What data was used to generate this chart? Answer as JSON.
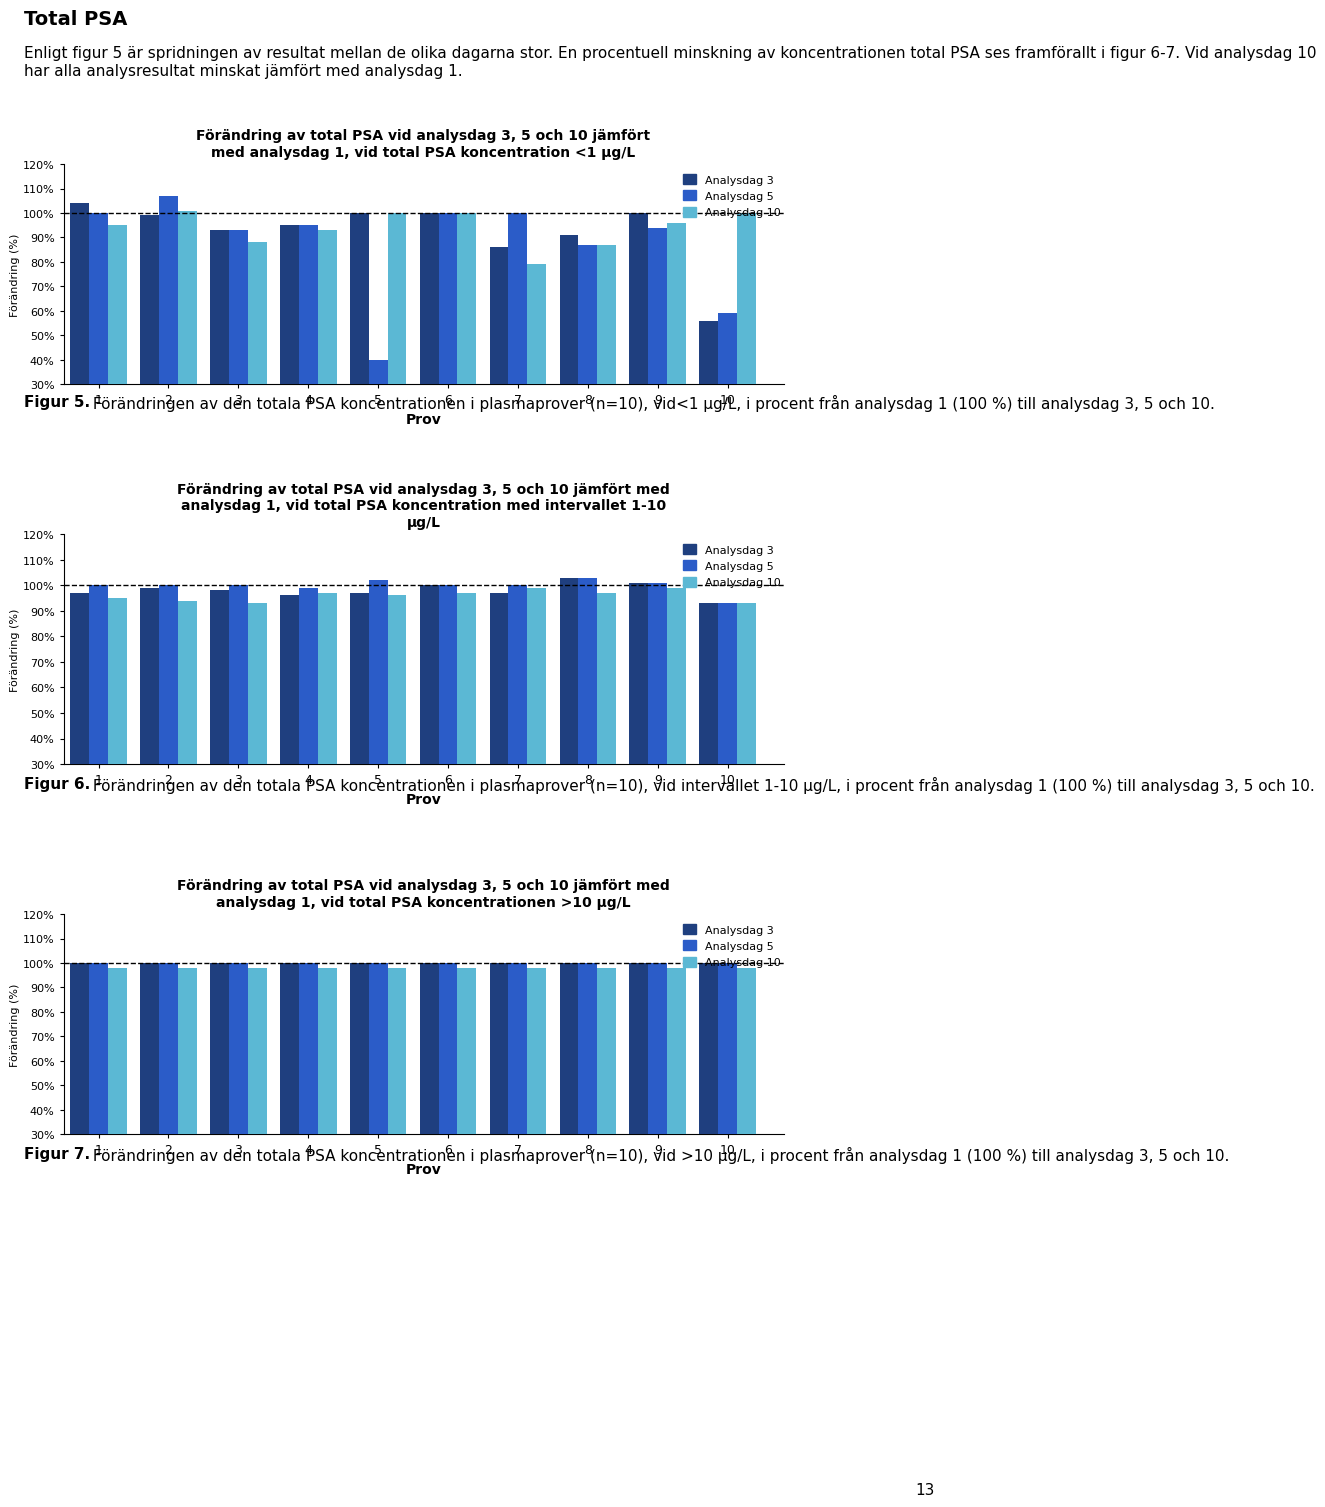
{
  "chart1": {
    "title_line1": "Förändring av total PSA vid analysdag 3, 5 och 10 jämfört",
    "title_line2": "med analysdag 1, vid total PSA koncentration <1 µg/L",
    "day3": [
      104,
      99,
      93,
      95,
      100,
      100,
      86,
      91,
      100,
      56
    ],
    "day5": [
      100,
      107,
      93,
      95,
      40,
      100,
      100,
      87,
      94,
      59
    ],
    "day10": [
      95,
      101,
      88,
      93,
      100,
      100,
      79,
      87,
      96,
      100
    ]
  },
  "chart2": {
    "title_line1": "Förändring av total PSA vid analysdag 3, 5 och 10 jämfört med",
    "title_line2": "analysdag 1, vid total PSA koncentration med intervallet 1-10",
    "title_line3": "µg/L",
    "day3": [
      97,
      99,
      98,
      96,
      97,
      100,
      97,
      103,
      101,
      93
    ],
    "day5": [
      100,
      100,
      100,
      99,
      102,
      100,
      100,
      103,
      101,
      93
    ],
    "day10": [
      95,
      94,
      93,
      97,
      96,
      97,
      99,
      97,
      99,
      93
    ]
  },
  "chart3": {
    "title_line1": "Förändring av total PSA vid analysdag 3, 5 och 10 jämfört med",
    "title_line2": "analysdag 1, vid total PSA koncentrationen >10 µg/L",
    "day3": [
      100,
      100,
      100,
      100,
      100,
      100,
      100,
      100,
      100,
      100
    ],
    "day5": [
      100,
      100,
      100,
      100,
      100,
      100,
      100,
      100,
      100,
      100
    ],
    "day10": [
      98,
      98,
      98,
      98,
      98,
      98,
      98,
      98,
      98,
      98
    ]
  },
  "colors": {
    "day3": "#1F3F7F",
    "day5": "#2B5CC8",
    "day10": "#5BB8D4"
  },
  "legend_labels": [
    "Analysdag 3",
    "Analysdag 5",
    "Analysdag 10"
  ],
  "ylabel": "Förändring (%)",
  "xlabel": "Prov",
  "ylim": [
    30,
    120
  ],
  "yticks": [
    30,
    40,
    50,
    60,
    70,
    80,
    90,
    100,
    110,
    120
  ],
  "xticks": [
    1,
    2,
    3,
    4,
    5,
    6,
    7,
    8,
    9,
    10
  ],
  "figur5_text_bold": "Figur 5.",
  "figur5_text": " Förändringen av den totala PSA koncentrationen i plasmaprover (n=10), vid<1 µg/L, i procent från analysdag 1 (100 %) till analysdag 3, 5 och 10.",
  "figur6_text_bold": "Figur 6.",
  "figur6_text": " Förändringen av den totala PSA koncentrationen i plasmaprover (n=10), vid intervallet 1-10 µg/L, i procent från analysdag 1 (100 %) till analysdag 3, 5 och 10.",
  "figur7_text_bold": "Figur 7.",
  "figur7_text": " Förändringen av den totala PSA koncentrationen i plasmaprover (n=10), vid >10 µg/L, i procent från analysdag 1 (100 %) till analysdag 3, 5 och 10.",
  "page_number": "13",
  "top_text_bold": "Total PSA",
  "top_text": "Enligt figur 5 är spridningen av resultat mellan de olika dagarna stor. En procentuell minskning av koncentrationen total PSA ses framförallt i figur 6-7. Vid analysdag 10 har alla analysresultat minskat jämfört med analysdag 1."
}
